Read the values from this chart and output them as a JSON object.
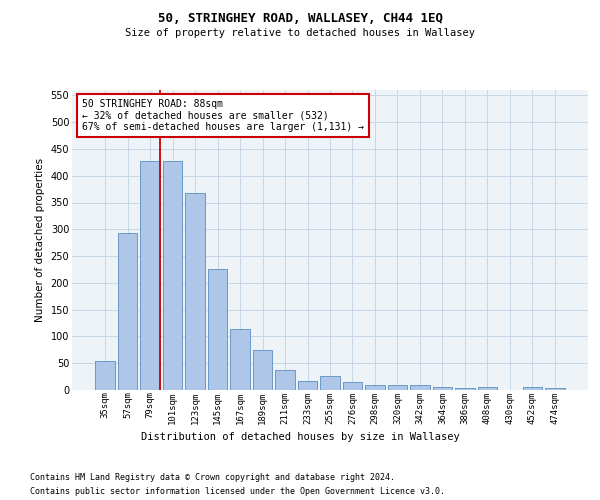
{
  "title": "50, STRINGHEY ROAD, WALLASEY, CH44 1EQ",
  "subtitle": "Size of property relative to detached houses in Wallasey",
  "xlabel": "Distribution of detached houses by size in Wallasey",
  "ylabel": "Number of detached properties",
  "footer_line1": "Contains HM Land Registry data © Crown copyright and database right 2024.",
  "footer_line2": "Contains public sector information licensed under the Open Government Licence v3.0.",
  "categories": [
    "35sqm",
    "57sqm",
    "79sqm",
    "101sqm",
    "123sqm",
    "145sqm",
    "167sqm",
    "189sqm",
    "211sqm",
    "233sqm",
    "255sqm",
    "276sqm",
    "298sqm",
    "320sqm",
    "342sqm",
    "364sqm",
    "386sqm",
    "408sqm",
    "430sqm",
    "452sqm",
    "474sqm"
  ],
  "values": [
    55,
    293,
    428,
    428,
    368,
    225,
    113,
    75,
    38,
    17,
    27,
    15,
    9,
    10,
    10,
    5,
    3,
    5,
    0,
    5,
    3
  ],
  "bar_color": "#aec6e8",
  "bar_edge_color": "#5a8fc0",
  "grid_color": "#c8d8e8",
  "bg_color": "#eef3f8",
  "property_line_color": "#cc0000",
  "annotation_text": "50 STRINGHEY ROAD: 88sqm\n← 32% of detached houses are smaller (532)\n67% of semi-detached houses are larger (1,131) →",
  "annotation_box_color": "#ffffff",
  "annotation_box_edge": "#cc0000",
  "ylim": [
    0,
    560
  ],
  "yticks": [
    0,
    50,
    100,
    150,
    200,
    250,
    300,
    350,
    400,
    450,
    500,
    550
  ]
}
